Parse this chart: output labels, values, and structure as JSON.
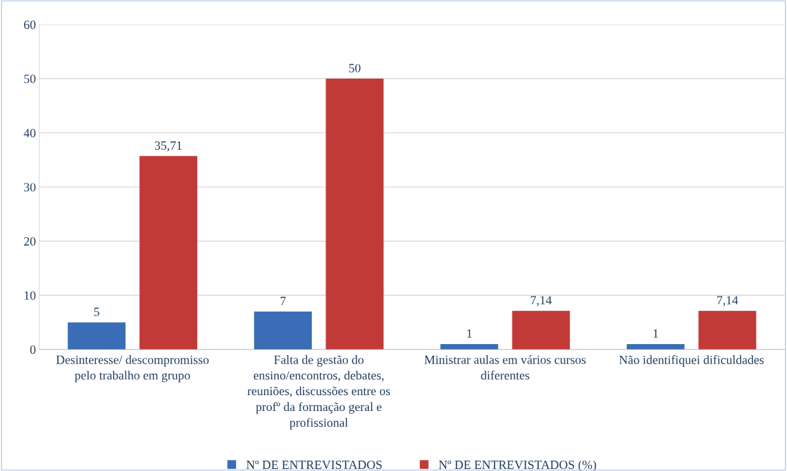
{
  "chart_data": {
    "type": "bar",
    "categories": [
      "Desinteresse/ descompromisso\npelo trabalho em grupo",
      "Falta de gestão do\nensino/encontros, debates,\nreuniões, discussões entre os\nprofº da formação geral e\nprofissional",
      "Ministrar aulas em vários cursos\ndiferentes",
      "Não identifiquei dificuldades"
    ],
    "series": [
      {
        "name": "Nº DE ENTREVISTADOS",
        "color": "#3a6db5",
        "values": [
          5,
          7,
          1,
          1
        ],
        "value_labels": [
          "5",
          "7",
          "1",
          "1"
        ]
      },
      {
        "name": "Nº DE ENTREVISTADOS (%)",
        "color": "#c23a38",
        "values": [
          35.71,
          50,
          7.14,
          7.14
        ],
        "value_labels": [
          "35,71",
          "50",
          "7,14",
          "7,14"
        ]
      }
    ],
    "ylim": [
      0,
      60
    ],
    "yticks": [
      0,
      10,
      20,
      30,
      40,
      50,
      60
    ],
    "grid": "y",
    "legend": "bottom"
  }
}
